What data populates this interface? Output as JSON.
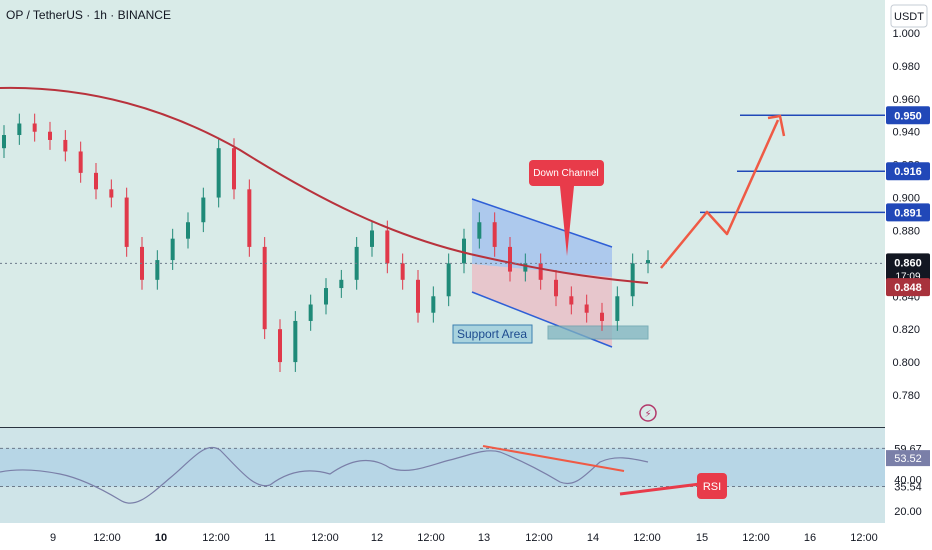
{
  "header": {
    "symbol": "OP / TetherUS · 1h · BINANCE",
    "currency": "USDT"
  },
  "colors": {
    "bg": "#d9ebe8",
    "bg_band": "#cfe4e8",
    "up": "#1f8a78",
    "down": "#e0394a",
    "ma": "#b8323c",
    "channel_blue": "#2f5fd6",
    "channel_fill_upper": "#8fb3f0",
    "channel_fill_lower": "#f2a7b5",
    "support_fill": "#7fb3bf",
    "projection": "#ef5a45",
    "level_line": "#2148b8",
    "rsi_line": "#7a7fa8",
    "rsi_band": "#9fc7e4",
    "price_badge": "#131722",
    "ma_badge": "#a8323c",
    "dashed": "#6c7a8a"
  },
  "chart_data": {
    "type": "candlestick",
    "title": "OP / TetherUS · 1h · BINANCE",
    "y_axis": {
      "unit": "USDT",
      "min": 0.765,
      "max": 1.005,
      "ticks": [
        1.0,
        0.98,
        0.96,
        0.94,
        0.92,
        0.9,
        0.88,
        0.86,
        0.84,
        0.82,
        0.8,
        0.78
      ]
    },
    "x_axis": {
      "ticks": [
        "9",
        "12:00",
        "10",
        "12:00",
        "11",
        "12:00",
        "12",
        "12:00",
        "13",
        "12:00",
        "14",
        "12:00",
        "15",
        "12:00",
        "16",
        "12:00"
      ]
    },
    "candles_close_approx": [
      0.938,
      0.945,
      0.94,
      0.935,
      0.928,
      0.915,
      0.905,
      0.9,
      0.87,
      0.85,
      0.862,
      0.875,
      0.885,
      0.9,
      0.93,
      0.905,
      0.87,
      0.82,
      0.8,
      0.825,
      0.835,
      0.845,
      0.85,
      0.87,
      0.88,
      0.86,
      0.85,
      0.83,
      0.84,
      0.86,
      0.875,
      0.885,
      0.87,
      0.855,
      0.86,
      0.85,
      0.84,
      0.835,
      0.83,
      0.825,
      0.84,
      0.86,
      0.862
    ],
    "levels": [
      {
        "label": "0.950",
        "value": 0.95
      },
      {
        "label": "0.916",
        "value": 0.916
      },
      {
        "label": "0.891",
        "value": 0.891
      }
    ],
    "last_price": {
      "label": "0.860",
      "value": 0.86,
      "countdown": "17:09"
    },
    "ma": {
      "label": "0.848",
      "value": 0.848
    },
    "annotations": {
      "channel": "Down Channel",
      "support": "Support Area"
    },
    "projection_points": [
      [
        0.861,
        0.884,
        0.879,
        0.951
      ]
    ],
    "rsi": {
      "ticks": [
        "59.67",
        "53.52",
        "40.00",
        "35.54",
        "20.00"
      ],
      "values": [
        59.67,
        53.52,
        40.0,
        35.54,
        20.0
      ],
      "label": "RSI"
    }
  }
}
